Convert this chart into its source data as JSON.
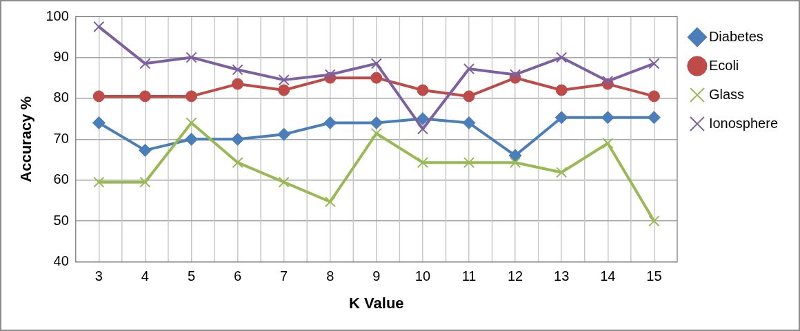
{
  "chart_data": {
    "type": "line",
    "xlabel": "K Value",
    "ylabel": "Accuracy %",
    "categories": [
      "3",
      "4",
      "5",
      "6",
      "7",
      "8",
      "9",
      "10",
      "11",
      "12",
      "13",
      "14",
      "15"
    ],
    "series": [
      {
        "name": "Diabetes",
        "color": "#4a7ebb",
        "marker": "diamond",
        "values": [
          74,
          67.3,
          70,
          70,
          71.2,
          74,
          74,
          75,
          74,
          66,
          75.3,
          75.3,
          75.3
        ]
      },
      {
        "name": "Ecoli",
        "color": "#be4b48",
        "marker": "circle",
        "values": [
          80.5,
          80.5,
          80.5,
          83.5,
          82,
          85,
          85,
          82,
          80.5,
          85,
          82,
          83.5,
          80.5
        ]
      },
      {
        "name": "Glass",
        "color": "#98b954",
        "marker": "cross",
        "values": [
          59.5,
          59.5,
          74,
          64.3,
          59.5,
          54.7,
          71.4,
          64.3,
          64.3,
          64.3,
          61.9,
          69,
          50
        ]
      },
      {
        "name": "Ionosphere",
        "color": "#7d60a0",
        "marker": "cross",
        "values": [
          97.5,
          88.5,
          90,
          87,
          84.5,
          85.8,
          88.5,
          72.5,
          87.2,
          85.8,
          90,
          84.2,
          88.5
        ]
      }
    ],
    "ylim": [
      40,
      100
    ],
    "yticks": [
      40,
      50,
      60,
      70,
      80,
      90,
      100
    ],
    "grid": true,
    "legend": "top right"
  }
}
